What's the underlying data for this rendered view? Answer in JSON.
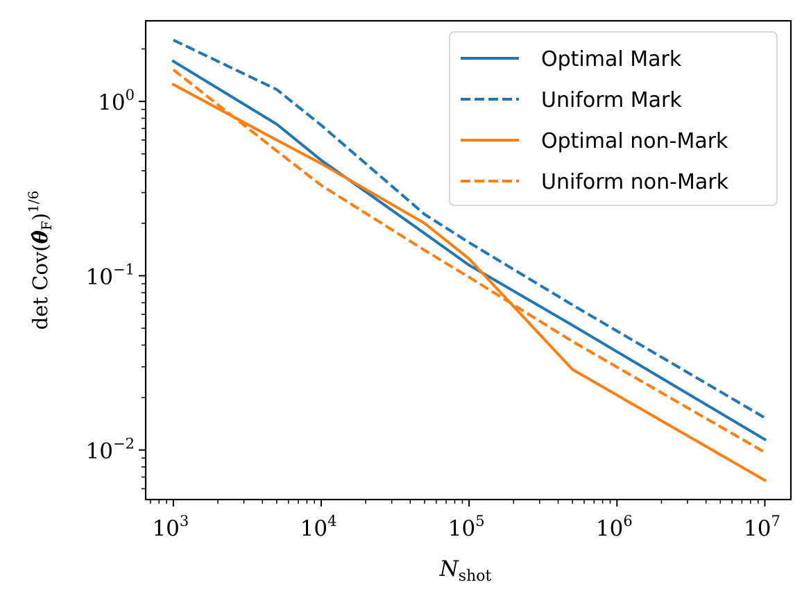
{
  "chart_data": {
    "type": "line",
    "xscale": "log",
    "yscale": "log",
    "x": [
      1000,
      5000,
      10000,
      50000,
      100000,
      500000,
      10000000
    ],
    "xlim": [
      650,
      15000000
    ],
    "ylim": [
      0.0052,
      2.9
    ],
    "xticks": [
      {
        "value": 1000,
        "base": "10",
        "exp": "3"
      },
      {
        "value": 10000,
        "base": "10",
        "exp": "4"
      },
      {
        "value": 100000,
        "base": "10",
        "exp": "5"
      },
      {
        "value": 1000000,
        "base": "10",
        "exp": "6"
      },
      {
        "value": 10000000,
        "base": "10",
        "exp": "7"
      }
    ],
    "yticks": [
      {
        "value": 1,
        "base": "10",
        "exp": "0"
      },
      {
        "value": 0.1,
        "base": "10",
        "exp": "−1"
      },
      {
        "value": 0.01,
        "base": "10",
        "exp": "−2"
      }
    ],
    "xlabel": {
      "main": "N",
      "sub": "shot"
    },
    "ylabel": {
      "prefix": "det Cov(",
      "theta": "θ̂",
      "sub": "F",
      "close": ")",
      "exp": "1/6"
    },
    "legend_position": "top-right",
    "series": [
      {
        "name": "Optimal Mark",
        "color": "#1f77b4",
        "dash": "solid",
        "values": [
          1.7,
          0.74,
          0.46,
          0.175,
          0.115,
          0.052,
          0.0115
        ]
      },
      {
        "name": "Uniform Mark",
        "color": "#1f77b4",
        "dash": "dashed",
        "values": [
          2.25,
          1.17,
          0.73,
          0.225,
          0.155,
          0.068,
          0.0153
        ]
      },
      {
        "name": "Optimal non-Mark",
        "color": "#ff7f0e",
        "dash": "solid",
        "values": [
          1.25,
          0.6,
          0.44,
          0.2,
          0.125,
          0.029,
          0.0067
        ]
      },
      {
        "name": "Uniform non-Mark",
        "color": "#ff7f0e",
        "dash": "dashed",
        "values": [
          1.52,
          0.52,
          0.33,
          0.14,
          0.098,
          0.042,
          0.0097
        ]
      }
    ]
  }
}
